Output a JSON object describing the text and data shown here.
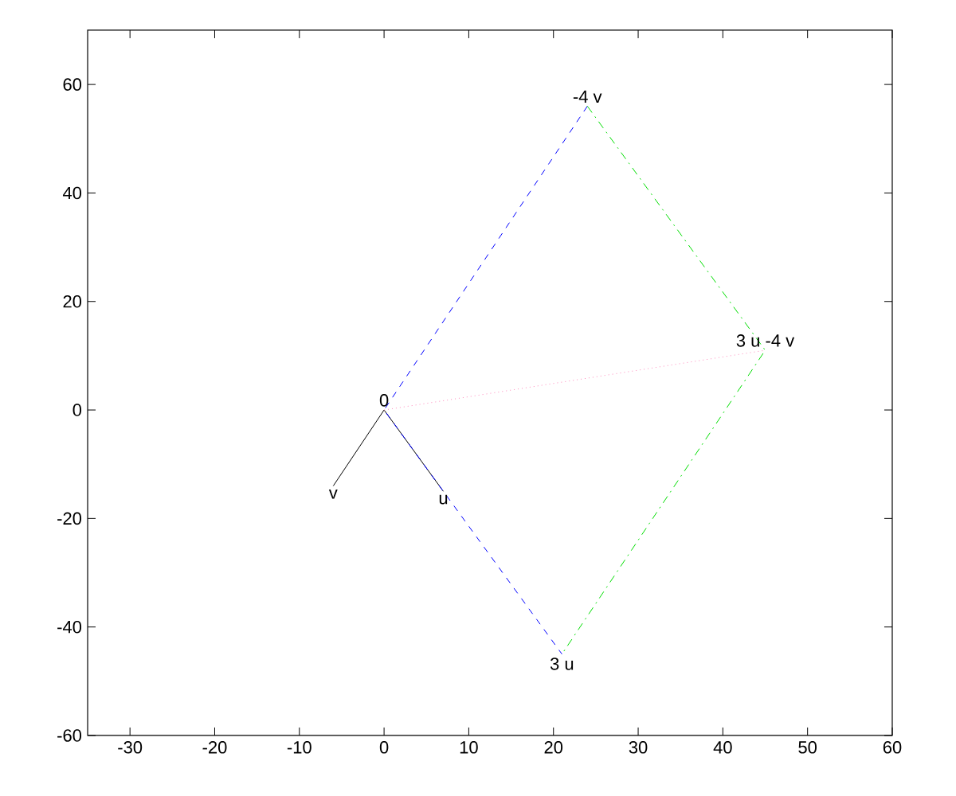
{
  "chart_data": {
    "type": "line",
    "xlim": [
      -35,
      60
    ],
    "ylim": [
      -60,
      70
    ],
    "xticks": [
      -30,
      -20,
      -10,
      0,
      10,
      20,
      30,
      40,
      50,
      60
    ],
    "yticks": [
      -60,
      -40,
      -20,
      0,
      20,
      40,
      60
    ],
    "grid": false,
    "series": [
      {
        "color": "#000000",
        "x": [
          0,
          -6
        ],
        "values": [
          0,
          -14
        ],
        "line_style": "solid"
      },
      {
        "color": "#000000",
        "x": [
          0,
          7
        ],
        "values": [
          0,
          -15
        ],
        "line_style": "solid"
      },
      {
        "color": "#0000ff",
        "x": [
          24,
          0,
          21
        ],
        "values": [
          56,
          0,
          -45
        ],
        "line_style": "dashed"
      },
      {
        "color": "#00dd00",
        "x": [
          24,
          45,
          21
        ],
        "values": [
          56,
          11,
          -45
        ],
        "line_style": "dashdot"
      },
      {
        "color": "#ff88bb",
        "x": [
          0,
          45
        ],
        "values": [
          0,
          11
        ],
        "line_style": "dotted"
      }
    ],
    "annotations": [
      {
        "text": "0",
        "x": 0,
        "y": 0
      },
      {
        "text": "v",
        "x": -6,
        "y": -14
      },
      {
        "text": "u",
        "x": 7,
        "y": -15
      },
      {
        "text": "3 u",
        "x": 21,
        "y": -45
      },
      {
        "text": "-4 v",
        "x": 24,
        "y": 56
      },
      {
        "text": "3 u -4 v",
        "x": 45,
        "y": 11
      }
    ]
  }
}
